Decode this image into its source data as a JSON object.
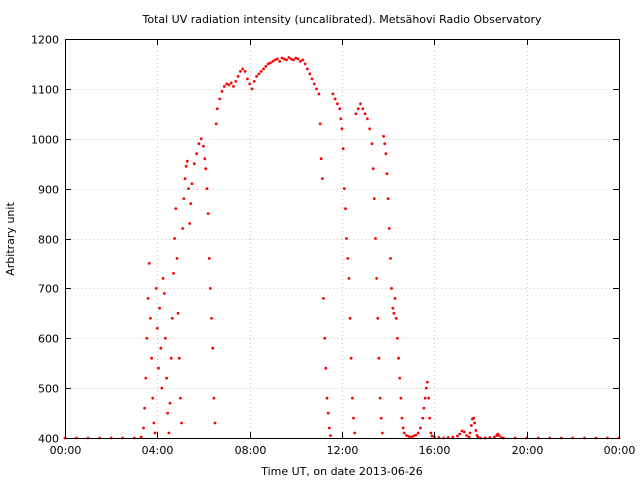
{
  "chart_data": {
    "type": "scatter",
    "title": "Total UV radiation intensity (uncalibrated). Metsähovi Radio Observatory",
    "xlabel": "Time UT, on date 2013-06-26",
    "ylabel": "Arbitrary unit",
    "x_unit": "hours UT",
    "xlim": [
      0,
      24
    ],
    "ylim": [
      400,
      1200
    ],
    "x_ticks": [
      {
        "value": 0,
        "label": "00:00"
      },
      {
        "value": 4,
        "label": "04:00"
      },
      {
        "value": 8,
        "label": "08:00"
      },
      {
        "value": 12,
        "label": "12:00"
      },
      {
        "value": 16,
        "label": "16:00"
      },
      {
        "value": 20,
        "label": "20:00"
      },
      {
        "value": 24,
        "label": "00:00"
      }
    ],
    "y_ticks": [
      {
        "value": 400,
        "label": "400"
      },
      {
        "value": 500,
        "label": "500"
      },
      {
        "value": 600,
        "label": "600"
      },
      {
        "value": 700,
        "label": "700"
      },
      {
        "value": 800,
        "label": "800"
      },
      {
        "value": 900,
        "label": "900"
      },
      {
        "value": 1000,
        "label": "1000"
      },
      {
        "value": 1100,
        "label": "1100"
      },
      {
        "value": 1200,
        "label": "1200"
      }
    ],
    "grid": true,
    "marker_color": "#ff0000",
    "series": [
      {
        "points": [
          [
            0.0,
            400
          ],
          [
            0.5,
            400
          ],
          [
            1.0,
            400
          ],
          [
            1.5,
            400
          ],
          [
            2.0,
            400
          ],
          [
            2.5,
            400
          ],
          [
            3.0,
            400
          ],
          [
            3.3,
            402
          ],
          [
            3.4,
            420
          ],
          [
            3.45,
            460
          ],
          [
            3.5,
            520
          ],
          [
            3.55,
            600
          ],
          [
            3.6,
            680
          ],
          [
            3.65,
            750
          ],
          [
            3.7,
            640
          ],
          [
            3.75,
            560
          ],
          [
            3.8,
            480
          ],
          [
            3.85,
            430
          ],
          [
            3.9,
            410
          ],
          [
            3.95,
            700
          ],
          [
            4.0,
            620
          ],
          [
            4.05,
            540
          ],
          [
            4.1,
            660
          ],
          [
            4.15,
            580
          ],
          [
            4.2,
            500
          ],
          [
            4.25,
            720
          ],
          [
            4.3,
            690
          ],
          [
            4.35,
            600
          ],
          [
            4.4,
            520
          ],
          [
            4.45,
            450
          ],
          [
            4.5,
            410
          ],
          [
            4.55,
            470
          ],
          [
            4.6,
            560
          ],
          [
            4.65,
            640
          ],
          [
            4.7,
            730
          ],
          [
            4.75,
            800
          ],
          [
            4.8,
            860
          ],
          [
            4.85,
            760
          ],
          [
            4.9,
            650
          ],
          [
            4.95,
            560
          ],
          [
            5.0,
            480
          ],
          [
            5.05,
            430
          ],
          [
            5.1,
            820
          ],
          [
            5.15,
            880
          ],
          [
            5.2,
            920
          ],
          [
            5.25,
            945
          ],
          [
            5.3,
            955
          ],
          [
            5.35,
            900
          ],
          [
            5.4,
            830
          ],
          [
            5.45,
            870
          ],
          [
            5.5,
            910
          ],
          [
            5.6,
            950
          ],
          [
            5.7,
            970
          ],
          [
            5.8,
            990
          ],
          [
            5.9,
            1000
          ],
          [
            6.0,
            985
          ],
          [
            6.05,
            960
          ],
          [
            6.1,
            940
          ],
          [
            6.15,
            900
          ],
          [
            6.2,
            850
          ],
          [
            6.25,
            760
          ],
          [
            6.3,
            700
          ],
          [
            6.35,
            640
          ],
          [
            6.4,
            580
          ],
          [
            6.45,
            480
          ],
          [
            6.5,
            430
          ],
          [
            6.55,
            1030
          ],
          [
            6.6,
            1060
          ],
          [
            6.7,
            1080
          ],
          [
            6.8,
            1095
          ],
          [
            6.9,
            1105
          ],
          [
            7.0,
            1110
          ],
          [
            7.1,
            1108
          ],
          [
            7.2,
            1112
          ],
          [
            7.3,
            1105
          ],
          [
            7.4,
            1115
          ],
          [
            7.5,
            1125
          ],
          [
            7.6,
            1135
          ],
          [
            7.7,
            1140
          ],
          [
            7.8,
            1135
          ],
          [
            7.9,
            1120
          ],
          [
            8.0,
            1110
          ],
          [
            8.1,
            1100
          ],
          [
            8.2,
            1115
          ],
          [
            8.3,
            1125
          ],
          [
            8.4,
            1130
          ],
          [
            8.5,
            1135
          ],
          [
            8.6,
            1140
          ],
          [
            8.7,
            1145
          ],
          [
            8.8,
            1150
          ],
          [
            8.9,
            1152
          ],
          [
            9.0,
            1155
          ],
          [
            9.1,
            1158
          ],
          [
            9.2,
            1160
          ],
          [
            9.3,
            1155
          ],
          [
            9.4,
            1162
          ],
          [
            9.5,
            1160
          ],
          [
            9.6,
            1158
          ],
          [
            9.7,
            1163
          ],
          [
            9.8,
            1160
          ],
          [
            9.9,
            1158
          ],
          [
            10.0,
            1162
          ],
          [
            10.1,
            1160
          ],
          [
            10.2,
            1155
          ],
          [
            10.3,
            1158
          ],
          [
            10.4,
            1150
          ],
          [
            10.5,
            1140
          ],
          [
            10.6,
            1130
          ],
          [
            10.7,
            1120
          ],
          [
            10.8,
            1110
          ],
          [
            10.9,
            1100
          ],
          [
            11.0,
            1090
          ],
          [
            11.05,
            1030
          ],
          [
            11.1,
            960
          ],
          [
            11.15,
            920
          ],
          [
            11.2,
            680
          ],
          [
            11.25,
            600
          ],
          [
            11.3,
            540
          ],
          [
            11.35,
            480
          ],
          [
            11.4,
            450
          ],
          [
            11.45,
            420
          ],
          [
            11.5,
            405
          ],
          [
            11.6,
            1090
          ],
          [
            11.7,
            1080
          ],
          [
            11.8,
            1070
          ],
          [
            11.9,
            1060
          ],
          [
            11.95,
            1040
          ],
          [
            12.0,
            1020
          ],
          [
            12.05,
            980
          ],
          [
            12.1,
            900
          ],
          [
            12.15,
            860
          ],
          [
            12.2,
            800
          ],
          [
            12.25,
            760
          ],
          [
            12.3,
            720
          ],
          [
            12.35,
            640
          ],
          [
            12.4,
            560
          ],
          [
            12.45,
            480
          ],
          [
            12.5,
            440
          ],
          [
            12.55,
            410
          ],
          [
            12.6,
            1050
          ],
          [
            12.7,
            1060
          ],
          [
            12.8,
            1070
          ],
          [
            12.9,
            1060
          ],
          [
            13.0,
            1050
          ],
          [
            13.1,
            1040
          ],
          [
            13.2,
            1020
          ],
          [
            13.3,
            990
          ],
          [
            13.35,
            940
          ],
          [
            13.4,
            880
          ],
          [
            13.45,
            800
          ],
          [
            13.5,
            720
          ],
          [
            13.55,
            640
          ],
          [
            13.6,
            560
          ],
          [
            13.65,
            480
          ],
          [
            13.7,
            440
          ],
          [
            13.75,
            410
          ],
          [
            13.8,
            1005
          ],
          [
            13.85,
            990
          ],
          [
            13.9,
            970
          ],
          [
            13.95,
            930
          ],
          [
            14.0,
            880
          ],
          [
            14.05,
            820
          ],
          [
            14.1,
            760
          ],
          [
            14.15,
            700
          ],
          [
            14.2,
            660
          ],
          [
            14.25,
            650
          ],
          [
            14.3,
            680
          ],
          [
            14.35,
            640
          ],
          [
            14.4,
            600
          ],
          [
            14.45,
            560
          ],
          [
            14.5,
            520
          ],
          [
            14.55,
            480
          ],
          [
            14.6,
            440
          ],
          [
            14.65,
            420
          ],
          [
            14.7,
            410
          ],
          [
            14.8,
            405
          ],
          [
            14.9,
            403
          ],
          [
            15.0,
            402
          ],
          [
            15.1,
            404
          ],
          [
            15.2,
            406
          ],
          [
            15.3,
            410
          ],
          [
            15.4,
            420
          ],
          [
            15.5,
            440
          ],
          [
            15.55,
            460
          ],
          [
            15.6,
            480
          ],
          [
            15.65,
            500
          ],
          [
            15.7,
            512
          ],
          [
            15.75,
            480
          ],
          [
            15.8,
            440
          ],
          [
            15.85,
            410
          ],
          [
            15.9,
            404
          ],
          [
            16.0,
            402
          ],
          [
            16.2,
            401
          ],
          [
            16.4,
            400
          ],
          [
            16.6,
            401
          ],
          [
            16.8,
            402
          ],
          [
            17.0,
            404
          ],
          [
            17.1,
            408
          ],
          [
            17.2,
            414
          ],
          [
            17.3,
            412
          ],
          [
            17.4,
            405
          ],
          [
            17.5,
            402
          ],
          [
            17.55,
            410
          ],
          [
            17.6,
            425
          ],
          [
            17.65,
            438
          ],
          [
            17.7,
            440
          ],
          [
            17.75,
            430
          ],
          [
            17.8,
            415
          ],
          [
            17.85,
            405
          ],
          [
            17.9,
            401
          ],
          [
            18.0,
            400
          ],
          [
            18.2,
            400
          ],
          [
            18.4,
            401
          ],
          [
            18.6,
            402
          ],
          [
            18.7,
            405
          ],
          [
            18.75,
            408
          ],
          [
            18.8,
            405
          ],
          [
            18.9,
            401
          ],
          [
            19.0,
            400
          ],
          [
            19.5,
            400
          ],
          [
            20.0,
            400
          ],
          [
            20.5,
            400
          ],
          [
            21.0,
            400
          ],
          [
            21.5,
            400
          ],
          [
            22.0,
            400
          ],
          [
            22.5,
            400
          ],
          [
            23.0,
            400
          ],
          [
            23.5,
            400
          ],
          [
            24.0,
            400
          ]
        ]
      }
    ]
  }
}
